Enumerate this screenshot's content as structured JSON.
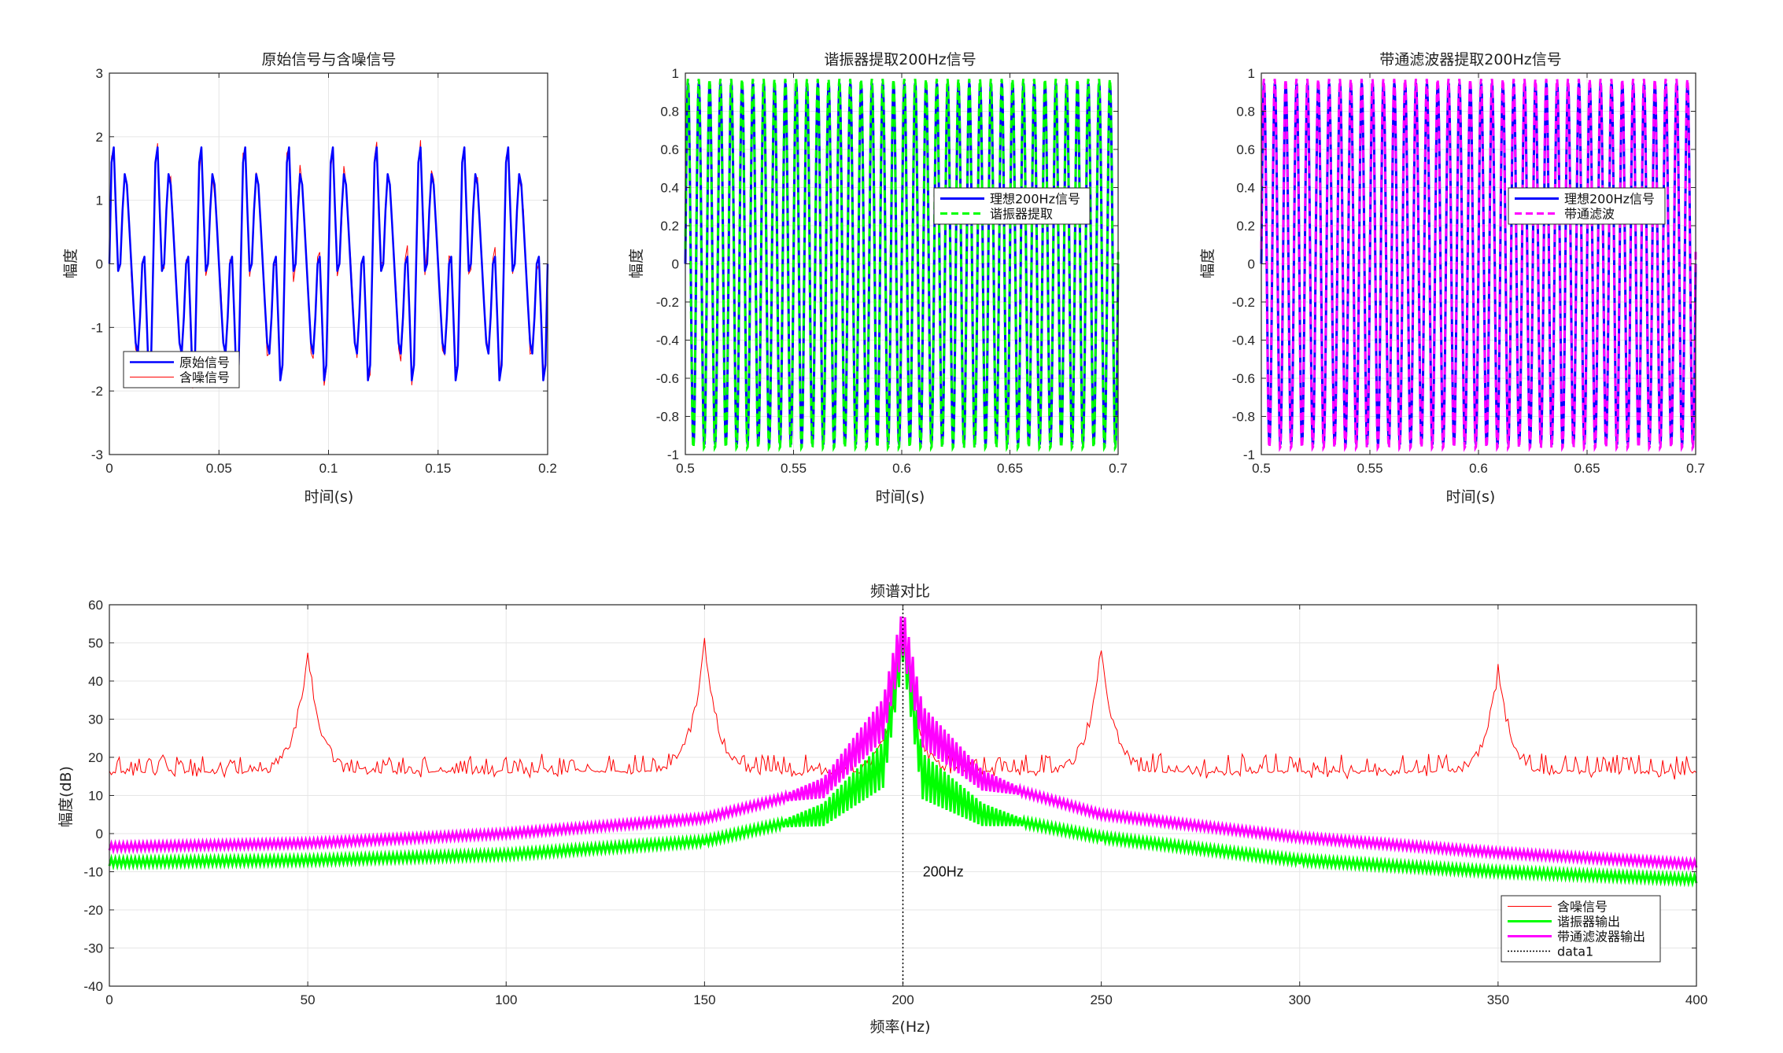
{
  "colors": {
    "blue": "#0000FF",
    "red": "#FF0000",
    "green": "#00FF00",
    "magenta": "#FF00FF",
    "black": "#000000",
    "grid": "#e6e6e6"
  },
  "chart_data": [
    {
      "id": "p1",
      "type": "line",
      "title": "原始信号与含噪信号",
      "xlabel": "时间(s)",
      "ylabel": "幅度",
      "xlim": [
        0,
        0.2
      ],
      "ylim": [
        -3,
        3
      ],
      "xticks": [
        "0",
        "0.05",
        "0.1",
        "0.15",
        "0.2"
      ],
      "yticks": [
        "-3",
        "-2",
        "-1",
        "0",
        "1",
        "2",
        "3"
      ],
      "grid": true,
      "legend_location": "southwest",
      "series": [
        {
          "name": "原始信号",
          "color": "#0000FF",
          "style": "solid",
          "width": 2.5,
          "model": "sin(2π·50t)+sin(2π·150t)+0.5·sin(2π·200t)",
          "x_range": [
            0,
            0.2
          ],
          "fs": 1000
        },
        {
          "name": "含噪信号",
          "color": "#FF0000",
          "style": "solid",
          "width": 1,
          "model": "原始信号 + noise(σ≈0.1)",
          "x_range": [
            0,
            0.2
          ],
          "fs": 1000
        }
      ]
    },
    {
      "id": "p2",
      "type": "line",
      "title": "谐振器提取200Hz信号",
      "xlabel": "时间(s)",
      "ylabel": "幅度",
      "xlim": [
        0.5,
        0.7
      ],
      "ylim": [
        -1,
        1
      ],
      "xticks": [
        "0.5",
        "0.55",
        "0.6",
        "0.65",
        "0.7"
      ],
      "yticks": [
        "-1",
        "-0.8",
        "-0.6",
        "-0.4",
        "-0.2",
        "0",
        "0.2",
        "0.4",
        "0.6",
        "0.8",
        "1"
      ],
      "grid": true,
      "legend_location": "east",
      "series": [
        {
          "name": "理想200Hz信号",
          "color": "#0000FF",
          "style": "solid",
          "width": 3,
          "model": "sin(2π·200t)",
          "amplitude": 0.95,
          "x_range": [
            0.5,
            0.7
          ]
        },
        {
          "name": "谐振器提取",
          "color": "#00FF00",
          "style": "dashed",
          "width": 3,
          "model": "resonator output ≈ 200Hz sinusoid",
          "amplitude": 0.97,
          "x_range": [
            0.5,
            0.7
          ]
        }
      ]
    },
    {
      "id": "p3",
      "type": "line",
      "title": "带通滤波器提取200Hz信号",
      "xlabel": "时间(s)",
      "ylabel": "幅度",
      "xlim": [
        0.5,
        0.7
      ],
      "ylim": [
        -1,
        1
      ],
      "xticks": [
        "0.5",
        "0.55",
        "0.6",
        "0.65",
        "0.7"
      ],
      "yticks": [
        "-1",
        "-0.8",
        "-0.6",
        "-0.4",
        "-0.2",
        "0",
        "0.2",
        "0.4",
        "0.6",
        "0.8",
        "1"
      ],
      "grid": true,
      "legend_location": "northeast",
      "series": [
        {
          "name": "理想200Hz信号",
          "color": "#0000FF",
          "style": "solid",
          "width": 3,
          "model": "sin(2π·200t)",
          "amplitude": 0.95,
          "x_range": [
            0.5,
            0.7
          ]
        },
        {
          "name": "带通滤波",
          "color": "#FF00FF",
          "style": "dashed",
          "width": 3,
          "model": "bandpass output ≈ 200Hz sinusoid",
          "amplitude": 0.97,
          "x_range": [
            0.5,
            0.7
          ]
        }
      ]
    },
    {
      "id": "p4",
      "type": "line",
      "title": "频谱对比",
      "xlabel": "频率(Hz)",
      "ylabel": "幅度(dB)",
      "xlim": [
        0,
        400
      ],
      "ylim": [
        -40,
        60
      ],
      "xticks": [
        "0",
        "50",
        "100",
        "150",
        "200",
        "250",
        "300",
        "350",
        "400"
      ],
      "yticks": [
        "-40",
        "-30",
        "-20",
        "-10",
        "0",
        "10",
        "20",
        "30",
        "40",
        "50",
        "60"
      ],
      "grid": true,
      "legend_location": "southeast",
      "annotation": {
        "text": "200Hz",
        "x": 205,
        "y": -10
      },
      "series": [
        {
          "name": "含噪信号",
          "color": "#FF0000",
          "style": "solid",
          "width": 1,
          "peaks": [
            {
              "x": 50,
              "y": 48
            },
            {
              "x": 150,
              "y": 50
            },
            {
              "x": 200,
              "y": 53
            },
            {
              "x": 250,
              "y": 49
            },
            {
              "x": 350,
              "y": 43
            }
          ],
          "floor_db": 15
        },
        {
          "name": "谐振器输出",
          "color": "#00FF00",
          "style": "solid",
          "width": 3,
          "points": [
            [
              0,
              -7.5
            ],
            [
              50,
              -7
            ],
            [
              100,
              -5.5
            ],
            [
              150,
              -2
            ],
            [
              180,
              5
            ],
            [
              195,
              18
            ],
            [
              200,
              52
            ],
            [
              205,
              15
            ],
            [
              220,
              5
            ],
            [
              250,
              -1
            ],
            [
              300,
              -7
            ],
            [
              350,
              -10
            ],
            [
              400,
              -12
            ]
          ]
        },
        {
          "name": "带通滤波器输出",
          "color": "#FF00FF",
          "style": "solid",
          "width": 3,
          "points": [
            [
              0,
              -3.5
            ],
            [
              50,
              -2.5
            ],
            [
              100,
              0
            ],
            [
              150,
              4
            ],
            [
              180,
              12
            ],
            [
              195,
              30
            ],
            [
              200,
              53
            ],
            [
              205,
              28
            ],
            [
              220,
              14
            ],
            [
              250,
              5
            ],
            [
              300,
              -1
            ],
            [
              350,
              -5
            ],
            [
              400,
              -8
            ]
          ]
        },
        {
          "name": "data1",
          "color": "#000000",
          "style": "dotted",
          "width": 1.5,
          "xline": 200
        }
      ]
    }
  ]
}
